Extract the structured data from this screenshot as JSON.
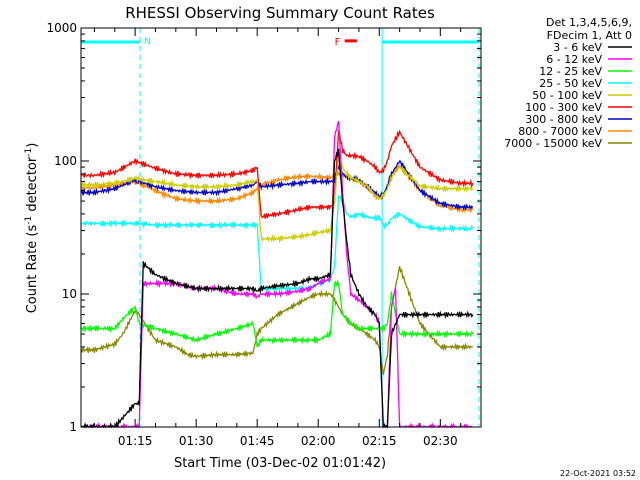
{
  "chart_data": {
    "type": "line",
    "title": "RHESSI Observing Summary Count Rates",
    "xlabel": "Start Time (03-Dec-02 01:01:42)",
    "ylabel_main": "Count Rate (s",
    "ylabel_sup1": "-1",
    "ylabel_mid": " detector",
    "ylabel_sup2": "-1",
    "ylabel_end": ")",
    "yscale": "log",
    "ylim": [
      1,
      1000
    ],
    "xlim_minutes": [
      61.7,
      160
    ],
    "y_ticks": [
      {
        "value": 1,
        "label": "1"
      },
      {
        "value": 10,
        "label": "10"
      },
      {
        "value": 100,
        "label": "100"
      },
      {
        "value": 1000,
        "label": "1000"
      }
    ],
    "x_ticks": [
      {
        "minute": 75,
        "label": "01:15"
      },
      {
        "minute": 90,
        "label": "01:30"
      },
      {
        "minute": 105,
        "label": "01:45"
      },
      {
        "minute": 120,
        "label": "02:00"
      },
      {
        "minute": 135,
        "label": "02:15"
      },
      {
        "minute": 150,
        "label": "02:30"
      }
    ],
    "legend": {
      "header1": "Det 1,3,4,5,6,9,",
      "header2": "FDecim 1, Att 0",
      "position": "right"
    },
    "series": [
      {
        "name": "3 - 6 keV",
        "color": "#000000",
        "x": [
          61.7,
          70,
          75,
          76,
          77,
          80,
          85,
          90,
          95,
          100,
          104,
          105,
          106,
          110,
          115,
          118,
          120,
          123,
          124,
          125,
          126,
          127,
          128,
          130,
          132,
          134,
          135,
          136,
          137,
          138,
          140,
          145,
          150,
          155,
          158
        ],
        "y": [
          1,
          1,
          1.5,
          1.5,
          17,
          14,
          12,
          11,
          11,
          11,
          11,
          10.5,
          11,
          11.5,
          12,
          13,
          13,
          14,
          100,
          120,
          50,
          25,
          14,
          10,
          8,
          7,
          6,
          1,
          1,
          5,
          7,
          7,
          7,
          7,
          7
        ]
      },
      {
        "name": "6 - 12 keV",
        "color": "#ff00ff",
        "x": [
          61.7,
          70,
          75,
          76,
          77,
          80,
          85,
          90,
          95,
          100,
          104,
          105,
          106,
          110,
          115,
          118,
          120,
          123,
          124,
          125,
          126,
          127,
          128,
          130,
          132,
          134,
          135,
          136,
          137,
          138,
          139,
          140,
          158
        ],
        "y": [
          1,
          1,
          1,
          1,
          12,
          12,
          12,
          11,
          11,
          10,
          10,
          9.5,
          10,
          10,
          10.5,
          11,
          12,
          13,
          150,
          200,
          60,
          20,
          10,
          9,
          8,
          7,
          6,
          1,
          1,
          8,
          11,
          1,
          1
        ]
      },
      {
        "name": "12 - 25 keV",
        "color": "#00ff00",
        "x": [
          61.7,
          65,
          70,
          72,
          75,
          76,
          80,
          85,
          90,
          95,
          100,
          104,
          105,
          106,
          110,
          115,
          118,
          120,
          123,
          124,
          125,
          126,
          128,
          130,
          132,
          134,
          135,
          136,
          137,
          138,
          140,
          145,
          150,
          155,
          158
        ],
        "y": [
          5.5,
          5.5,
          5.5,
          6.5,
          8,
          6,
          5.5,
          5,
          4.5,
          5,
          5.5,
          6,
          4,
          4.5,
          4.5,
          4.5,
          4.5,
          4.5,
          5,
          12,
          12,
          7,
          6,
          5.5,
          5.5,
          5.5,
          5.5,
          5.5,
          6,
          10,
          5,
          5,
          5,
          5,
          5
        ]
      },
      {
        "name": "25 - 50 keV",
        "color": "#00ffff",
        "x": [
          61.7,
          65,
          70,
          75,
          80,
          85,
          90,
          95,
          100,
          104,
          105,
          106,
          110,
          115,
          118,
          120,
          123,
          124,
          125,
          126,
          127,
          128,
          130,
          132,
          134,
          135,
          136,
          137,
          138,
          140,
          145,
          150,
          155,
          158
        ],
        "y": [
          34,
          34,
          34,
          34,
          33,
          33,
          33,
          33,
          33,
          33,
          33,
          11,
          11,
          11,
          11,
          12,
          13,
          16,
          55,
          50,
          40,
          38,
          40,
          38,
          37,
          38,
          33,
          33,
          37,
          40,
          32,
          31,
          31,
          31
        ]
      },
      {
        "name": "50 - 100 keV",
        "color": "#cccc00",
        "x": [
          61.7,
          65,
          70,
          75,
          80,
          85,
          90,
          95,
          100,
          104,
          105,
          106,
          110,
          115,
          118,
          120,
          123,
          124,
          125,
          126,
          127,
          128,
          130,
          132,
          134,
          135,
          136,
          137,
          138,
          140,
          145,
          150,
          155,
          158
        ],
        "y": [
          66,
          66,
          68,
          74,
          70,
          66,
          64,
          64,
          66,
          70,
          72,
          26,
          26,
          27,
          28,
          29,
          30,
          50,
          110,
          90,
          80,
          75,
          70,
          65,
          55,
          52,
          55,
          62,
          75,
          90,
          65,
          62,
          62,
          62
        ]
      },
      {
        "name": "100 - 300 keV",
        "color": "#ff0000",
        "x": [
          61.7,
          65,
          70,
          75,
          80,
          85,
          90,
          95,
          100,
          104,
          105,
          106,
          110,
          115,
          118,
          120,
          123,
          124,
          125,
          126,
          127,
          128,
          130,
          132,
          134,
          135,
          136,
          137,
          138,
          140,
          145,
          150,
          155,
          158
        ],
        "y": [
          78,
          78,
          82,
          100,
          88,
          80,
          78,
          78,
          80,
          85,
          90,
          38,
          40,
          43,
          45,
          45,
          45,
          50,
          170,
          120,
          110,
          110,
          108,
          100,
          90,
          82,
          85,
          100,
          130,
          165,
          90,
          72,
          68,
          68
        ]
      },
      {
        "name": "300 - 800 keV",
        "color": "#0000cc",
        "x": [
          61.7,
          65,
          70,
          75,
          80,
          85,
          90,
          95,
          100,
          104,
          105,
          106,
          110,
          115,
          118,
          120,
          123,
          124,
          125,
          126,
          127,
          128,
          130,
          132,
          134,
          135,
          136,
          137,
          138,
          140,
          145,
          150,
          155,
          158
        ],
        "y": [
          58,
          58,
          62,
          72,
          64,
          60,
          58,
          58,
          62,
          66,
          70,
          64,
          66,
          68,
          70,
          70,
          70,
          72,
          90,
          80,
          76,
          74,
          72,
          65,
          58,
          54,
          56,
          65,
          80,
          100,
          60,
          48,
          45,
          45
        ]
      },
      {
        "name": "800 - 7000 keV",
        "color": "#ff8800",
        "x": [
          61.7,
          65,
          70,
          75,
          80,
          85,
          90,
          95,
          100,
          104,
          105,
          106,
          110,
          115,
          118,
          120,
          123,
          124,
          125,
          126,
          127,
          128,
          130,
          132,
          134,
          135,
          136,
          137,
          138,
          140,
          145,
          150,
          155,
          158
        ],
        "y": [
          63,
          63,
          66,
          70,
          60,
          52,
          50,
          50,
          52,
          58,
          62,
          66,
          72,
          76,
          77,
          76,
          75,
          76,
          80,
          78,
          76,
          74,
          72,
          62,
          55,
          52,
          55,
          65,
          80,
          92,
          60,
          46,
          43,
          43
        ]
      },
      {
        "name": "7000 - 15000 keV",
        "color": "#888800",
        "x": [
          61.7,
          65,
          70,
          72,
          75,
          76,
          80,
          85,
          88,
          90,
          95,
          100,
          104,
          105,
          106,
          110,
          115,
          118,
          120,
          123,
          124,
          125,
          126,
          127,
          128,
          130,
          132,
          134,
          135,
          136,
          137,
          138,
          140,
          145,
          150,
          155,
          158
        ],
        "y": [
          3.8,
          3.8,
          4.2,
          5,
          7.5,
          7,
          4.5,
          4,
          3.5,
          3.4,
          3.5,
          3.5,
          3.6,
          5,
          5.5,
          7,
          8.5,
          9.5,
          10,
          10,
          9,
          8,
          7,
          6.5,
          6,
          5.5,
          5,
          4.5,
          4,
          2.5,
          3.5,
          8,
          16,
          6,
          4,
          4,
          4
        ]
      }
    ],
    "region_lines": [
      {
        "minute": 61.7,
        "style": "solid"
      },
      {
        "minute": 76.2,
        "style": "dashed"
      },
      {
        "minute": 135.7,
        "style": "solid"
      },
      {
        "minute": 159.5,
        "style": "dashed"
      }
    ],
    "night_bars": [
      {
        "label": "N",
        "start": 61.7,
        "end": 76.2
      },
      {
        "label": "",
        "start": 135.7,
        "end": 159.5
      }
    ],
    "flare_marker": {
      "label": "F",
      "start": 126.5,
      "end": 129.5,
      "y": 800
    }
  },
  "footer_date": "22-Oct-2021 03:52",
  "colors": {
    "axes": "#000000",
    "region": "#00ffff",
    "flare": "#ff0000"
  }
}
